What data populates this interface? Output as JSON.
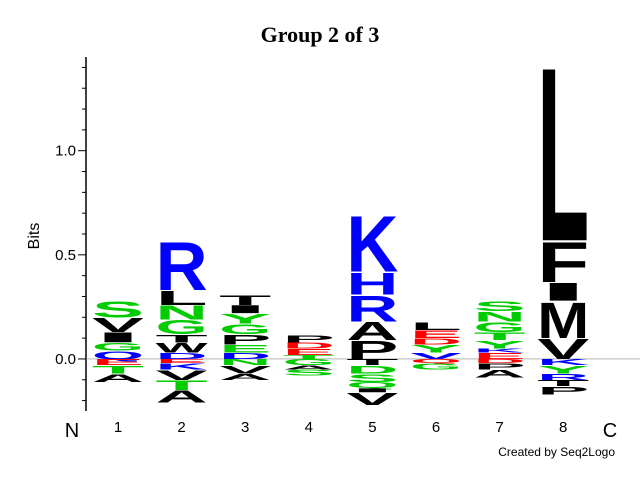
{
  "chart_data": {
    "type": "logo",
    "title": "Group 2 of 3",
    "y_label": "Bits",
    "start_label": "N",
    "end_label": "C",
    "credit": "Created by Seq2Logo",
    "ylim": [
      -0.25,
      1.45
    ],
    "yticks": [
      {
        "value": 0,
        "label": "0.0"
      },
      {
        "value": 0.5,
        "label": "0.5"
      },
      {
        "value": 1,
        "label": "1.0"
      }
    ],
    "yminorticks": [
      -0.2,
      -0.1,
      0.1,
      0.2,
      0.3,
      0.4,
      0.6,
      0.7,
      0.8,
      0.9,
      1.1,
      1.2,
      1.3,
      1.4
    ],
    "categories": [
      "1",
      "2",
      "3",
      "4",
      "5",
      "6",
      "7",
      "8"
    ],
    "stacks": [
      {
        "positive": [
          {
            "letter": "Q",
            "color": "#0000ff",
            "value": 0.04
          },
          {
            "letter": "G",
            "color": "#00cc00",
            "value": 0.04
          },
          {
            "letter": "I",
            "color": "#000000",
            "value": 0.05
          },
          {
            "letter": "V",
            "color": "#000000",
            "value": 0.07
          },
          {
            "letter": "S",
            "color": "#00cc00",
            "value": 0.08
          }
        ],
        "negative": [
          {
            "letter": "E",
            "color": "#ff0000",
            "value": -0.03
          },
          {
            "letter": "T",
            "color": "#00cc00",
            "value": -0.04
          },
          {
            "letter": "A",
            "color": "#000000",
            "value": -0.04
          }
        ]
      },
      {
        "positive": [
          {
            "letter": "D",
            "color": "#0000ff",
            "value": 0.03
          },
          {
            "letter": "W",
            "color": "#000000",
            "value": 0.05
          },
          {
            "letter": "T",
            "color": "#000000",
            "value": 0.04
          },
          {
            "letter": "G",
            "color": "#00cc00",
            "value": 0.07
          },
          {
            "letter": "N",
            "color": "#00cc00",
            "value": 0.07
          },
          {
            "letter": "L",
            "color": "#000000",
            "value": 0.07
          },
          {
            "letter": "R",
            "color": "#0000ff",
            "value": 0.24
          }
        ],
        "negative": [
          {
            "letter": "E",
            "color": "#ff0000",
            "value": -0.02
          },
          {
            "letter": "K",
            "color": "#0000ff",
            "value": -0.03
          },
          {
            "letter": "V",
            "color": "#000000",
            "value": -0.05
          },
          {
            "letter": "T",
            "color": "#00cc00",
            "value": -0.05
          },
          {
            "letter": "A",
            "color": "#000000",
            "value": -0.06
          }
        ]
      },
      {
        "positive": [
          {
            "letter": "D",
            "color": "#0000ff",
            "value": 0.03
          },
          {
            "letter": "E",
            "color": "#00cc00",
            "value": 0.04
          },
          {
            "letter": "P",
            "color": "#000000",
            "value": 0.05
          },
          {
            "letter": "G",
            "color": "#00cc00",
            "value": 0.05
          },
          {
            "letter": "Y",
            "color": "#00cc00",
            "value": 0.05
          },
          {
            "letter": "I",
            "color": "#000000",
            "value": 0.04
          },
          {
            "letter": "T",
            "color": "#000000",
            "value": 0.05
          }
        ],
        "negative": [
          {
            "letter": "N",
            "color": "#00cc00",
            "value": -0.03
          },
          {
            "letter": "V",
            "color": "#000000",
            "value": -0.04
          },
          {
            "letter": "A",
            "color": "#000000",
            "value": -0.03
          }
        ]
      },
      {
        "positive": [
          {
            "letter": "T",
            "color": "#00cc00",
            "value": 0.02
          },
          {
            "letter": "E",
            "color": "#ff0000",
            "value": 0.03
          },
          {
            "letter": "D",
            "color": "#ff0000",
            "value": 0.03
          },
          {
            "letter": "P",
            "color": "#000000",
            "value": 0.035
          }
        ],
        "negative": [
          {
            "letter": "G",
            "color": "#00cc00",
            "value": -0.03
          },
          {
            "letter": "A",
            "color": "#000000",
            "value": -0.02
          },
          {
            "letter": "S",
            "color": "#00cc00",
            "value": -0.03
          }
        ]
      },
      {
        "positive": [
          {
            "letter": "P",
            "color": "#000000",
            "value": 0.09
          },
          {
            "letter": "A",
            "color": "#000000",
            "value": 0.09
          },
          {
            "letter": "R",
            "color": "#0000ff",
            "value": 0.13
          },
          {
            "letter": "H",
            "color": "#0000ff",
            "value": 0.11
          },
          {
            "letter": "K",
            "color": "#0000ff",
            "value": 0.28
          }
        ],
        "negative": [
          {
            "letter": "T",
            "color": "#000000",
            "value": -0.03
          },
          {
            "letter": "D",
            "color": "#00cc00",
            "value": -0.04
          },
          {
            "letter": "S",
            "color": "#00cc00",
            "value": -0.04
          },
          {
            "letter": "Q",
            "color": "#00cc00",
            "value": -0.03
          },
          {
            "letter": "I",
            "color": "#000000",
            "value": -0.02
          },
          {
            "letter": "V",
            "color": "#000000",
            "value": -0.06
          }
        ]
      },
      {
        "positive": [
          {
            "letter": "V",
            "color": "#0000ff",
            "value": 0.03
          },
          {
            "letter": "Y",
            "color": "#00cc00",
            "value": 0.04
          },
          {
            "letter": "D",
            "color": "#ff0000",
            "value": 0.03
          },
          {
            "letter": "E",
            "color": "#ff0000",
            "value": 0.04
          },
          {
            "letter": "L",
            "color": "#000000",
            "value": 0.04
          }
        ],
        "negative": [
          {
            "letter": "Q",
            "color": "#ff0000",
            "value": -0.02
          },
          {
            "letter": "G",
            "color": "#00cc00",
            "value": -0.03
          }
        ]
      },
      {
        "positive": [
          {
            "letter": "E",
            "color": "#ff0000",
            "value": 0.03
          },
          {
            "letter": "K",
            "color": "#0000ff",
            "value": 0.02
          },
          {
            "letter": "Y",
            "color": "#00cc00",
            "value": 0.04
          },
          {
            "letter": "T",
            "color": "#00cc00",
            "value": 0.04
          },
          {
            "letter": "G",
            "color": "#00cc00",
            "value": 0.05
          },
          {
            "letter": "N",
            "color": "#00cc00",
            "value": 0.05
          },
          {
            "letter": "S",
            "color": "#00cc00",
            "value": 0.05
          }
        ],
        "negative": [
          {
            "letter": "D",
            "color": "#ff0000",
            "value": -0.02
          },
          {
            "letter": "P",
            "color": "#000000",
            "value": -0.03
          },
          {
            "letter": "A",
            "color": "#000000",
            "value": -0.04
          }
        ]
      },
      {
        "positive": [
          {
            "letter": "V",
            "color": "#000000",
            "value": 0.1
          },
          {
            "letter": "M",
            "color": "#000000",
            "value": 0.18
          },
          {
            "letter": "I",
            "color": "#000000",
            "value": 0.09
          },
          {
            "letter": "F",
            "color": "#000000",
            "value": 0.2
          },
          {
            "letter": "L",
            "color": "#000000",
            "value": 0.87
          }
        ],
        "negative": [
          {
            "letter": "K",
            "color": "#0000ff",
            "value": -0.03
          },
          {
            "letter": "Y",
            "color": "#00cc00",
            "value": -0.04
          },
          {
            "letter": "R",
            "color": "#0000ff",
            "value": -0.03
          },
          {
            "letter": "T",
            "color": "#000000",
            "value": -0.03
          },
          {
            "letter": "P",
            "color": "#000000",
            "value": -0.04
          }
        ]
      }
    ]
  }
}
